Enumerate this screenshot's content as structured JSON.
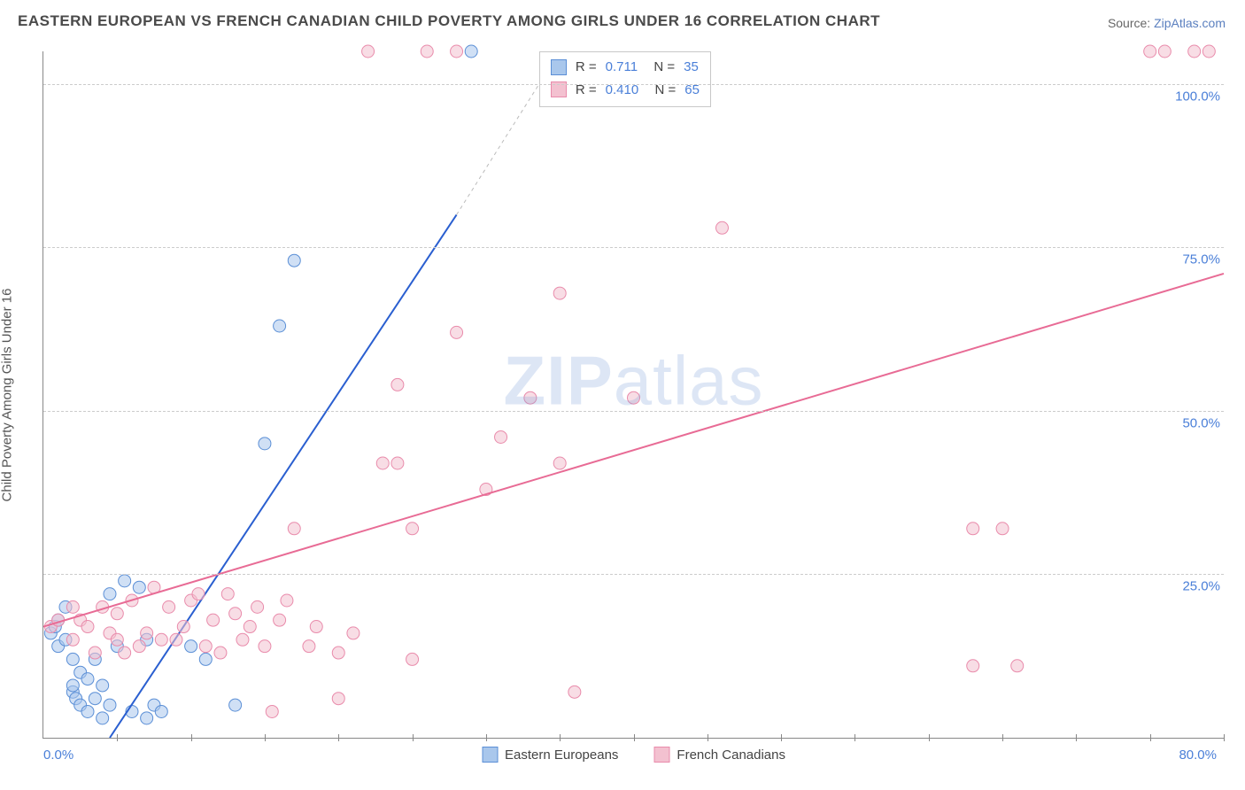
{
  "title": "EASTERN EUROPEAN VS FRENCH CANADIAN CHILD POVERTY AMONG GIRLS UNDER 16 CORRELATION CHART",
  "source_label": "Source: ",
  "source_name": "ZipAtlas.com",
  "ylabel": "Child Poverty Among Girls Under 16",
  "watermark": "ZIPatlas",
  "chart": {
    "type": "scatter-correlation",
    "xlim": [
      0,
      80
    ],
    "ylim": [
      0,
      105
    ],
    "x_origin_label": "0.0%",
    "x_max_label": "80.0%",
    "y_ticks": [
      {
        "v": 25,
        "label": "25.0%"
      },
      {
        "v": 50,
        "label": "50.0%"
      },
      {
        "v": 75,
        "label": "75.0%"
      },
      {
        "v": 100,
        "label": "100.0%"
      }
    ],
    "x_tick_step": 5,
    "background_color": "#ffffff",
    "grid_color": "#cccccc",
    "axis_color": "#888888",
    "marker_radius": 7,
    "marker_opacity": 0.55,
    "line_width": 2,
    "series": [
      {
        "name": "Eastern Europeans",
        "color_fill": "#a9c7ec",
        "color_stroke": "#5b8fd6",
        "line_color": "#2a5fd0",
        "R": "0.711",
        "N": "35",
        "trend": {
          "x1": 4.5,
          "y1": 0,
          "x2": 28,
          "y2": 80,
          "dash_x2": 35,
          "dash_y2": 105
        },
        "points": [
          [
            0.5,
            16
          ],
          [
            0.8,
            17
          ],
          [
            1,
            14
          ],
          [
            1,
            18
          ],
          [
            1.5,
            20
          ],
          [
            1.5,
            15
          ],
          [
            2,
            7
          ],
          [
            2,
            8
          ],
          [
            2,
            12
          ],
          [
            2.2,
            6
          ],
          [
            2.5,
            5
          ],
          [
            2.5,
            10
          ],
          [
            3,
            4
          ],
          [
            3,
            9
          ],
          [
            3.5,
            6
          ],
          [
            3.5,
            12
          ],
          [
            4,
            8
          ],
          [
            4,
            3
          ],
          [
            4.5,
            5
          ],
          [
            4.5,
            22
          ],
          [
            5,
            14
          ],
          [
            5.5,
            24
          ],
          [
            6,
            4
          ],
          [
            6.5,
            23
          ],
          [
            7,
            3
          ],
          [
            7,
            15
          ],
          [
            7.5,
            5
          ],
          [
            8,
            4
          ],
          [
            10,
            14
          ],
          [
            11,
            12
          ],
          [
            13,
            5
          ],
          [
            15,
            45
          ],
          [
            16,
            63
          ],
          [
            17,
            73
          ],
          [
            29,
            105
          ]
        ]
      },
      {
        "name": "French Canadians",
        "color_fill": "#f3c1d0",
        "color_stroke": "#e98bab",
        "line_color": "#e86b95",
        "R": "0.410",
        "N": "65",
        "trend": {
          "x1": 0,
          "y1": 17,
          "x2": 80,
          "y2": 71
        },
        "points": [
          [
            0.5,
            17
          ],
          [
            1,
            18
          ],
          [
            2,
            15
          ],
          [
            2,
            20
          ],
          [
            2.5,
            18
          ],
          [
            3,
            17
          ],
          [
            3.5,
            13
          ],
          [
            4,
            20
          ],
          [
            4.5,
            16
          ],
          [
            5,
            19
          ],
          [
            5,
            15
          ],
          [
            5.5,
            13
          ],
          [
            6,
            21
          ],
          [
            6.5,
            14
          ],
          [
            7,
            16
          ],
          [
            7.5,
            23
          ],
          [
            8,
            15
          ],
          [
            8.5,
            20
          ],
          [
            9,
            15
          ],
          [
            9.5,
            17
          ],
          [
            10,
            21
          ],
          [
            10.5,
            22
          ],
          [
            11,
            14
          ],
          [
            11.5,
            18
          ],
          [
            12,
            13
          ],
          [
            12.5,
            22
          ],
          [
            13,
            19
          ],
          [
            13.5,
            15
          ],
          [
            14,
            17
          ],
          [
            14.5,
            20
          ],
          [
            15,
            14
          ],
          [
            15.5,
            4
          ],
          [
            16,
            18
          ],
          [
            16.5,
            21
          ],
          [
            17,
            32
          ],
          [
            18,
            14
          ],
          [
            18.5,
            17
          ],
          [
            20,
            13
          ],
          [
            20,
            6
          ],
          [
            21,
            16
          ],
          [
            22,
            105
          ],
          [
            23,
            42
          ],
          [
            24,
            54
          ],
          [
            24,
            42
          ],
          [
            25,
            32
          ],
          [
            25,
            12
          ],
          [
            26,
            105
          ],
          [
            28,
            105
          ],
          [
            28,
            62
          ],
          [
            30,
            38
          ],
          [
            31,
            46
          ],
          [
            33,
            52
          ],
          [
            35,
            42
          ],
          [
            35,
            68
          ],
          [
            36,
            7
          ],
          [
            40,
            52
          ],
          [
            46,
            78
          ],
          [
            63,
            11
          ],
          [
            63,
            32
          ],
          [
            65,
            32
          ],
          [
            66,
            11
          ],
          [
            75,
            105
          ],
          [
            76,
            105
          ],
          [
            78,
            105
          ],
          [
            79,
            105
          ]
        ]
      }
    ]
  },
  "legend_bottom": [
    {
      "label": "Eastern Europeans",
      "fill": "#a9c7ec",
      "stroke": "#5b8fd6"
    },
    {
      "label": "French Canadians",
      "fill": "#f3c1d0",
      "stroke": "#e98bab"
    }
  ]
}
